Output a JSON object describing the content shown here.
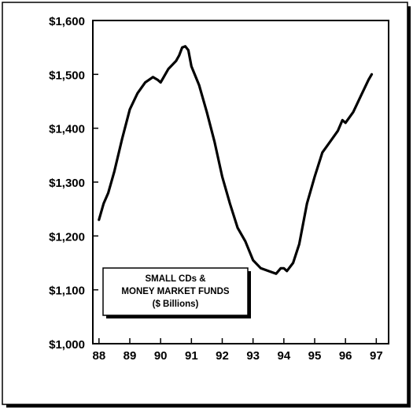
{
  "chart_data": {
    "type": "line",
    "title": "",
    "xlabel": "",
    "ylabel": "",
    "series": [
      {
        "name": "",
        "x": [
          1988.0,
          1988.15,
          1988.3,
          1988.5,
          1988.75,
          1989.0,
          1989.25,
          1989.5,
          1989.75,
          1989.9,
          1990.0,
          1990.1,
          1990.25,
          1990.5,
          1990.6,
          1990.7,
          1990.8,
          1990.9,
          1991.0,
          1991.25,
          1991.5,
          1991.75,
          1992.0,
          1992.25,
          1992.5,
          1992.75,
          1993.0,
          1993.25,
          1993.5,
          1993.75,
          1993.9,
          1994.0,
          1994.1,
          1994.3,
          1994.5,
          1994.75,
          1995.0,
          1995.25,
          1995.5,
          1995.75,
          1995.9,
          1996.0,
          1996.25,
          1996.5,
          1996.75,
          1996.85
        ],
        "y": [
          1230,
          1260,
          1280,
          1320,
          1380,
          1435,
          1465,
          1485,
          1495,
          1490,
          1485,
          1495,
          1510,
          1525,
          1535,
          1550,
          1552,
          1545,
          1515,
          1480,
          1430,
          1375,
          1310,
          1260,
          1215,
          1190,
          1155,
          1140,
          1135,
          1130,
          1140,
          1140,
          1135,
          1150,
          1185,
          1260,
          1310,
          1355,
          1375,
          1395,
          1415,
          1410,
          1430,
          1460,
          1490,
          1500
        ]
      }
    ],
    "xlim": [
      1987.8,
      1997.4
    ],
    "ylim": [
      1000,
      1600
    ],
    "x_ticks": [
      1988,
      1989,
      1990,
      1991,
      1992,
      1993,
      1994,
      1995,
      1996,
      1997
    ],
    "x_tick_labels": [
      "88",
      "89",
      "90",
      "91",
      "92",
      "93",
      "94",
      "95",
      "96",
      "97"
    ],
    "y_ticks": [
      1000,
      1100,
      1200,
      1300,
      1400,
      1500,
      1600
    ],
    "y_tick_labels": [
      "$1,000",
      "$1,100",
      "$1,200",
      "$1,300",
      "$1,400",
      "$1,500",
      "$1,600"
    ],
    "annotation": {
      "lines": [
        "SMALL CDs &",
        "MONEY MARKET FUNDS",
        "($ Billions)"
      ],
      "placement": "lower-left"
    },
    "grid": false,
    "colors": {
      "line": "#000000",
      "axis": "#000000",
      "background": "#ffffff"
    }
  }
}
